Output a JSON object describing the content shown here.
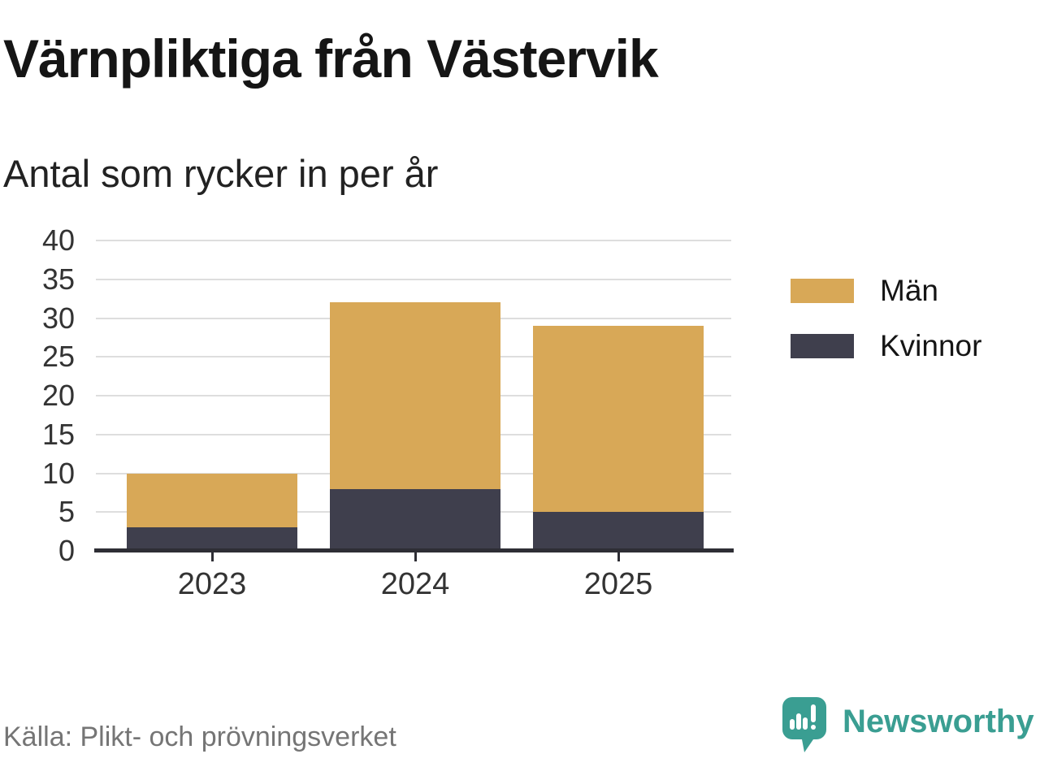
{
  "header": {
    "title": "Värnpliktiga från Västervik",
    "subtitle": "Antal som rycker in per år"
  },
  "chart_data": {
    "type": "bar",
    "stacked": true,
    "title": "Värnpliktiga från Västervik",
    "subtitle": "Antal som rycker in per år",
    "categories": [
      "2023",
      "2024",
      "2025"
    ],
    "series": [
      {
        "name": "Män",
        "color": "#d8a857",
        "values": [
          7,
          24,
          24
        ]
      },
      {
        "name": "Kvinnor",
        "color": "#3f3f4d",
        "values": [
          3,
          8,
          5
        ]
      }
    ],
    "stacked_totals": [
      10,
      32,
      29
    ],
    "ylim": [
      0,
      40
    ],
    "y_ticks": [
      0,
      5,
      10,
      15,
      20,
      25,
      30,
      35,
      40
    ],
    "xlabel": "",
    "ylabel": "",
    "grid": true,
    "legend_position": "right"
  },
  "footer": {
    "source": "Källa: Plikt- och prövningsverket",
    "brand": "Newsworthy"
  },
  "colors": {
    "men": "#d8a857",
    "women": "#3f3f4d",
    "axis": "#2e2e35",
    "gridline": "#dedede",
    "brand_teal": "#3a9e92",
    "source_text": "#757575"
  }
}
